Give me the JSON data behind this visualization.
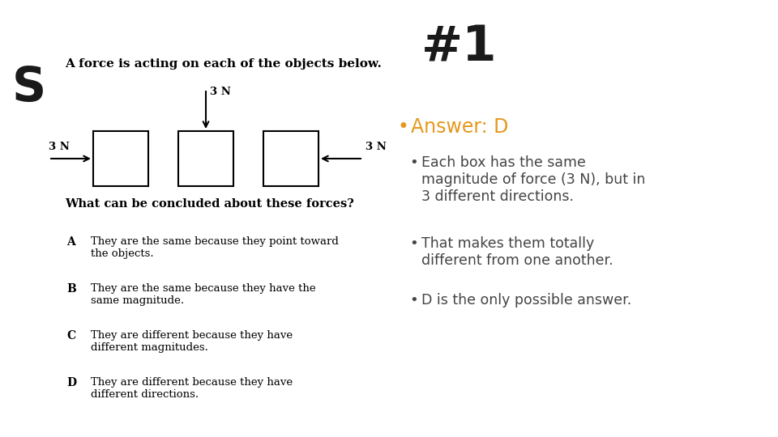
{
  "background_color": "#ffffff",
  "title_number": "#1",
  "title_color": "#1a1a1a",
  "slide_label": "S",
  "question_text": "A force is acting on each of the objects below.",
  "what_text": "What can be concluded about these forces?",
  "answer_header": "Answer: D",
  "answer_header_color": "#e6981e",
  "bullet1": "Each box has the same\nmagnitude of force (3 N), but in\n3 different directions.",
  "bullet2": "That makes them totally\ndifferent from one another.",
  "bullet3": "D is the only possible answer.",
  "choices": [
    [
      "A",
      "They are the same because they point toward\nthe objects."
    ],
    [
      "B",
      "They are the same because they have the\nsame magnitude."
    ],
    [
      "C",
      "They are different because they have\ndifferent magnitudes."
    ],
    [
      "D",
      "They are different because they have\ndifferent directions."
    ]
  ],
  "box_color": "#000000",
  "arrow_color": "#000000",
  "bullet_color": "#444444"
}
